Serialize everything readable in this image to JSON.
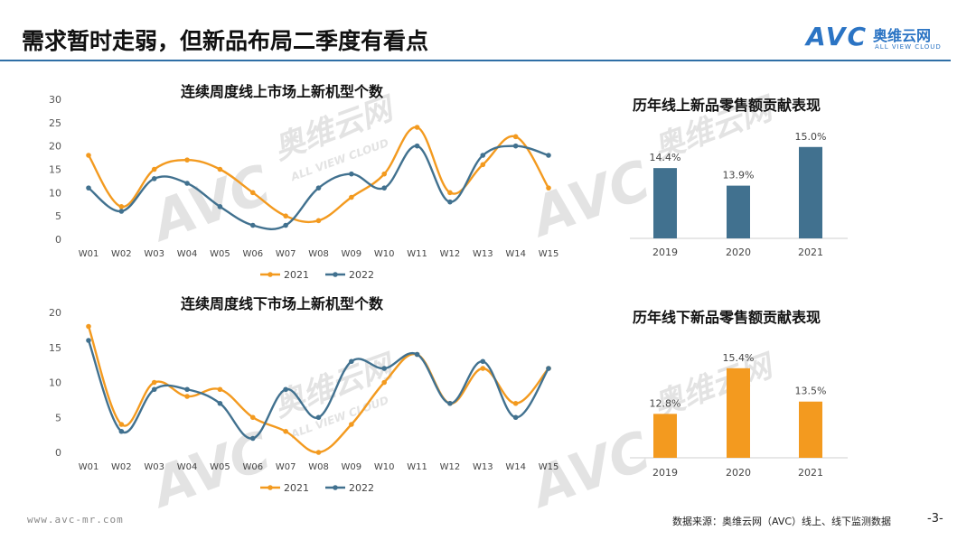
{
  "header": {
    "title": "需求暂时走弱，但新品布局二季度有看点",
    "logo_avc": "AVC",
    "logo_cn": "奥维云网",
    "logo_en": "ALL VIEW CLOUD"
  },
  "watermark": {
    "cn": "奥维云网",
    "en": "ALL VIEW CLOUD",
    "avc": "AVC"
  },
  "footer": {
    "url": "www.avc-mr.com",
    "source": "数据来源：奥维云网（AVC）线上、线下监测数据",
    "page": "-3-"
  },
  "colors": {
    "orange": "#f39a1f",
    "blue": "#41718f",
    "accent": "#2b74c4"
  },
  "chart_data": [
    {
      "type": "line",
      "title": "连续周度线上市场上新机型个数",
      "categories": [
        "W01",
        "W02",
        "W03",
        "W04",
        "W05",
        "W06",
        "W07",
        "W08",
        "W09",
        "W10",
        "W11",
        "W12",
        "W13",
        "W14",
        "W15"
      ],
      "series": [
        {
          "name": "2021",
          "color": "#f39a1f",
          "values": [
            18,
            7,
            15,
            17,
            15,
            10,
            5,
            4,
            9,
            14,
            24,
            10,
            16,
            22,
            11
          ]
        },
        {
          "name": "2022",
          "color": "#41718f",
          "values": [
            11,
            6,
            13,
            12,
            7,
            3,
            3,
            11,
            14,
            11,
            20,
            8,
            18,
            20,
            18
          ]
        }
      ],
      "ylim": [
        0,
        30
      ],
      "yticks": [
        0,
        5,
        10,
        15,
        20,
        25,
        30
      ],
      "legend": "bottom"
    },
    {
      "type": "line",
      "title": "连续周度线下市场上新机型个数",
      "categories": [
        "W01",
        "W02",
        "W03",
        "W04",
        "W05",
        "W06",
        "W07",
        "W08",
        "W09",
        "W10",
        "W11",
        "W12",
        "W13",
        "W14",
        "W15"
      ],
      "series": [
        {
          "name": "2021",
          "color": "#f39a1f",
          "values": [
            18,
            4,
            10,
            8,
            9,
            5,
            3,
            0,
            4,
            10,
            14,
            7,
            12,
            7,
            12
          ]
        },
        {
          "name": "2022",
          "color": "#41718f",
          "values": [
            16,
            3,
            9,
            9,
            7,
            2,
            9,
            5,
            13,
            12,
            14,
            7,
            13,
            5,
            12
          ]
        }
      ],
      "ylim": [
        0,
        20
      ],
      "yticks": [
        0,
        5,
        10,
        15,
        20
      ],
      "legend": "bottom"
    },
    {
      "type": "bar",
      "title": "历年线上新品零售额贡献表现",
      "categories": [
        "2019",
        "2020",
        "2021"
      ],
      "values": [
        14.4,
        13.9,
        15.0
      ],
      "labels": [
        "14.4%",
        "13.9%",
        "15.0%"
      ],
      "color": "#41718f",
      "ylim": [
        12.4,
        15.2
      ]
    },
    {
      "type": "bar",
      "title": "历年线下新品零售额贡献表现",
      "categories": [
        "2019",
        "2020",
        "2021"
      ],
      "values": [
        12.8,
        15.4,
        13.5
      ],
      "labels": [
        "12.8%",
        "15.4%",
        "13.5%"
      ],
      "color": "#f39a1f",
      "ylim": [
        10.3,
        15.8
      ]
    }
  ]
}
